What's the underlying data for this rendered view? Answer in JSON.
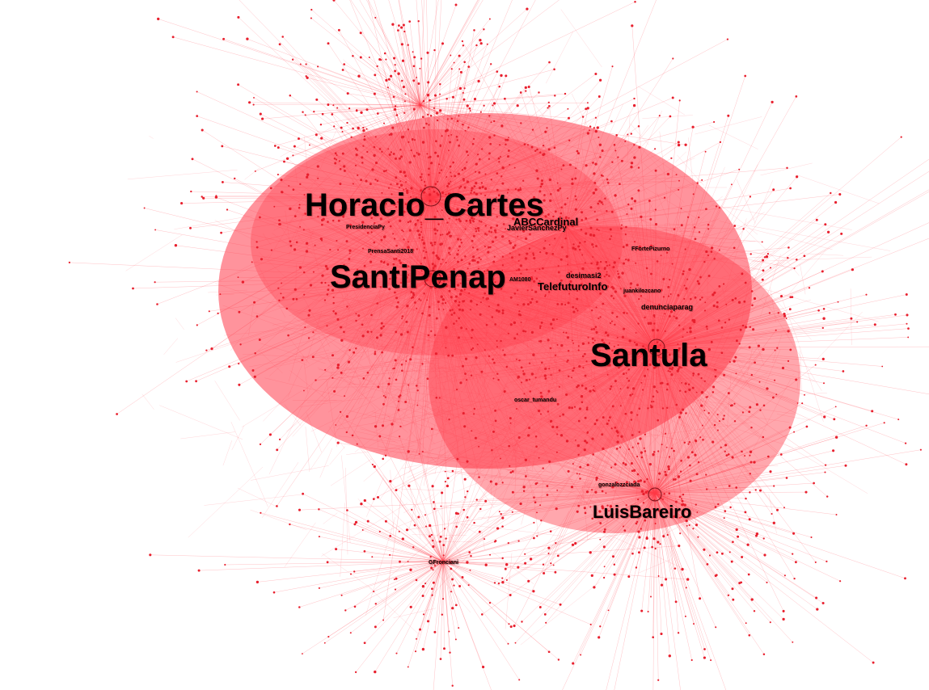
{
  "graph": {
    "edge_color": "#ff3b4a",
    "node_color": "#e8202e",
    "background": "#ffffff",
    "labels": {
      "horacio_cartes": "Horacio_Cartes",
      "santipenap": "SantiPenap",
      "santula": "Santula",
      "luisbareiro": "LuisBareiro",
      "abccardinal": "ABCCardinal",
      "javiersanchezpy": "JavierSanchezPy",
      "telefuturoinfo": "TelefuturoInfo",
      "desimasi2": "desimasi2",
      "denunciaparag": "denunciaparag",
      "presidenciapy": "PresidenciaPy",
      "prensasanti2018": "PrensaSanti2018",
      "ffortepizurno": "FFortePizurno",
      "juankilozcano": "juankilozcano",
      "oscar_tuma": "oscar_tumandu",
      "gonzalozzciada": "gonzalozzciada",
      "gfronciani": "GFronciani",
      "am1080": "AM1080"
    }
  }
}
